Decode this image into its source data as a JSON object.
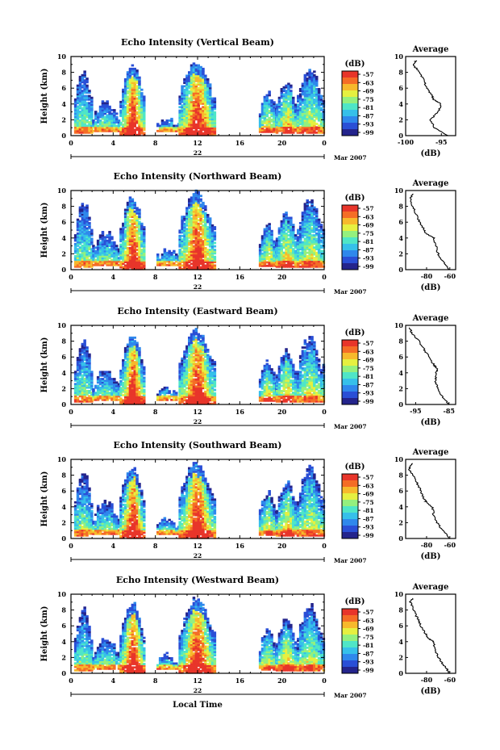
{
  "chart_data": [
    {
      "type": "heatmap",
      "title": "Echo Intensity (Vertical Beam)",
      "ylabel": "Height (km)",
      "yticks": [
        "0",
        "2",
        "4",
        "6",
        "8",
        "10"
      ],
      "xticks": [
        "0",
        "4",
        "8",
        "12",
        "16",
        "20",
        "0"
      ],
      "date_label": "22",
      "month_label": "Mar 2007",
      "ylim": [
        0,
        10
      ],
      "xlim": [
        0,
        24
      ],
      "colorbar": {
        "unit": "(dB)",
        "ticks": [
          "-57",
          "-63",
          "-69",
          "-75",
          "-81",
          "-87",
          "-93",
          "-99"
        ]
      },
      "profile": {
        "title": "Average",
        "xlabel": "(dB)",
        "xticks": [
          "-100",
          "-95"
        ],
        "xlim": [
          -100,
          -93
        ],
        "heights": [
          0,
          1,
          2,
          3,
          4,
          4.5,
          5,
          6,
          7,
          8,
          9,
          9.5
        ],
        "values": [
          -94,
          -96,
          -96.5,
          -95.5,
          -95,
          -96,
          -96.3,
          -97,
          -97.5,
          -98,
          -99,
          -98.5
        ]
      }
    },
    {
      "type": "heatmap",
      "title": "Echo Intensity (Northward Beam)",
      "ylabel": "Height (km)",
      "yticks": [
        "0",
        "2",
        "4",
        "6",
        "8",
        "10"
      ],
      "xticks": [
        "0",
        "4",
        "8",
        "12",
        "16",
        "20",
        "0"
      ],
      "date_label": "22",
      "month_label": "Mar 2007",
      "ylim": [
        0,
        10
      ],
      "xlim": [
        0,
        24
      ],
      "colorbar": {
        "unit": "(dB)",
        "ticks": [
          "-57",
          "-63",
          "-69",
          "-75",
          "-81",
          "-87",
          "-93",
          "-99"
        ]
      },
      "profile": {
        "title": "Average",
        "xlabel": "(dB)",
        "xticks": [
          "-80",
          "-60"
        ],
        "xlim": [
          -98,
          -55
        ],
        "heights": [
          0,
          1,
          2,
          3,
          4,
          4.5,
          5,
          6,
          7,
          8,
          9,
          9.6
        ],
        "values": [
          -60,
          -66,
          -70,
          -72,
          -74,
          -80,
          -82,
          -86,
          -89,
          -92,
          -94,
          -92
        ]
      }
    },
    {
      "type": "heatmap",
      "title": "Echo Intensity (Eastward Beam)",
      "ylabel": "Height (km)",
      "yticks": [
        "0",
        "2",
        "4",
        "6",
        "8",
        "10"
      ],
      "xticks": [
        "0",
        "4",
        "8",
        "12",
        "16",
        "20",
        "0"
      ],
      "date_label": "22",
      "month_label": "Mar 2007",
      "ylim": [
        0,
        10
      ],
      "xlim": [
        0,
        24
      ],
      "colorbar": {
        "unit": "(dB)",
        "ticks": [
          "-57",
          "-63",
          "-69",
          "-75",
          "-81",
          "-87",
          "-93",
          "-99"
        ]
      },
      "profile": {
        "title": "Average",
        "xlabel": "(dB)",
        "xticks": [
          "-95",
          "-85"
        ],
        "xlim": [
          -98,
          -83
        ],
        "heights": [
          0,
          1,
          2,
          3,
          4,
          4.5,
          5,
          6,
          7,
          8,
          9,
          9.7
        ],
        "values": [
          -85,
          -87,
          -88.5,
          -89,
          -89,
          -88.5,
          -89.5,
          -91,
          -92.5,
          -94,
          -96,
          -97
        ]
      }
    },
    {
      "type": "heatmap",
      "title": "Echo Intensity (Southward Beam)",
      "ylabel": "Height (km)",
      "yticks": [
        "0",
        "2",
        "4",
        "6",
        "8",
        "10"
      ],
      "xticks": [
        "0",
        "4",
        "8",
        "12",
        "16",
        "20",
        "0"
      ],
      "date_label": "22",
      "month_label": "Mar 2007",
      "ylim": [
        0,
        10
      ],
      "xlim": [
        0,
        24
      ],
      "colorbar": {
        "unit": "(dB)",
        "ticks": [
          "-57",
          "-63",
          "-69",
          "-75",
          "-81",
          "-87",
          "-93",
          "-99"
        ]
      },
      "profile": {
        "title": "Average",
        "xlabel": "(dB)",
        "xticks": [
          "-80",
          "-60"
        ],
        "xlim": [
          -98,
          -55
        ],
        "heights": [
          0,
          1,
          2,
          3,
          4,
          4.5,
          5,
          6,
          7,
          8,
          8.8,
          9.5
        ],
        "values": [
          -60,
          -66,
          -71,
          -74,
          -75,
          -80,
          -82,
          -85,
          -88,
          -92,
          -95,
          -92
        ]
      }
    },
    {
      "type": "heatmap",
      "title": "Echo Intensity (Westward Beam)",
      "ylabel": "Height (km)",
      "yticks": [
        "0",
        "2",
        "4",
        "6",
        "8",
        "10"
      ],
      "xticks": [
        "0",
        "4",
        "8",
        "12",
        "16",
        "20",
        "0"
      ],
      "date_label": "22",
      "month_label": "Mar 2007",
      "xlabel": "Local Time",
      "ylim": [
        0,
        10
      ],
      "xlim": [
        0,
        24
      ],
      "colorbar": {
        "unit": "(dB)",
        "ticks": [
          "-57",
          "-63",
          "-69",
          "-75",
          "-81",
          "-87",
          "-93",
          "-99"
        ]
      },
      "profile": {
        "title": "Average",
        "xlabel": "(dB)",
        "xticks": [
          "-80",
          "-60"
        ],
        "xlim": [
          -98,
          -55
        ],
        "heights": [
          0,
          1,
          2,
          3,
          4,
          4.5,
          5,
          6,
          7,
          8,
          9,
          9.5
        ],
        "values": [
          -60,
          -65,
          -70,
          -73,
          -74,
          -79,
          -81,
          -85,
          -88,
          -91,
          -94,
          -92
        ]
      }
    }
  ],
  "colors": {
    "scale": [
      "#24248c",
      "#2a4fd6",
      "#2f88ec",
      "#36c0ea",
      "#4fe6c7",
      "#94f07e",
      "#e6f040",
      "#f7b92c",
      "#f56d26",
      "#e8352a"
    ]
  }
}
